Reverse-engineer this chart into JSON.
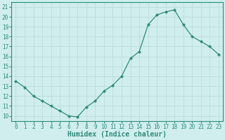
{
  "xlabel": "Humidex (Indice chaleur)",
  "x": [
    0,
    1,
    2,
    3,
    4,
    5,
    6,
    7,
    8,
    9,
    10,
    11,
    12,
    13,
    14,
    15,
    16,
    17,
    18,
    19,
    20,
    21,
    22,
    23
  ],
  "y": [
    13.5,
    12.9,
    12.0,
    11.5,
    11.0,
    10.5,
    10.0,
    9.9,
    10.9,
    11.5,
    12.5,
    13.1,
    14.0,
    15.8,
    16.5,
    19.2,
    20.2,
    20.5,
    20.7,
    19.2,
    18.0,
    17.5,
    17.0,
    16.2
  ],
  "line_color": "#2e8b7a",
  "bg_color": "#d0eeee",
  "grid_color": "#b8d8d8",
  "ylim": [
    9.5,
    21.5
  ],
  "yticks": [
    10,
    11,
    12,
    13,
    14,
    15,
    16,
    17,
    18,
    19,
    20,
    21
  ],
  "xlim": [
    -0.5,
    23.5
  ],
  "xticks": [
    0,
    1,
    2,
    3,
    4,
    5,
    6,
    7,
    8,
    9,
    10,
    11,
    12,
    13,
    14,
    15,
    16,
    17,
    18,
    19,
    20,
    21,
    22,
    23
  ],
  "xlabel_fontsize": 7,
  "tick_fontsize": 5.5,
  "marker": "D",
  "marker_size": 2.0,
  "linewidth": 0.9
}
